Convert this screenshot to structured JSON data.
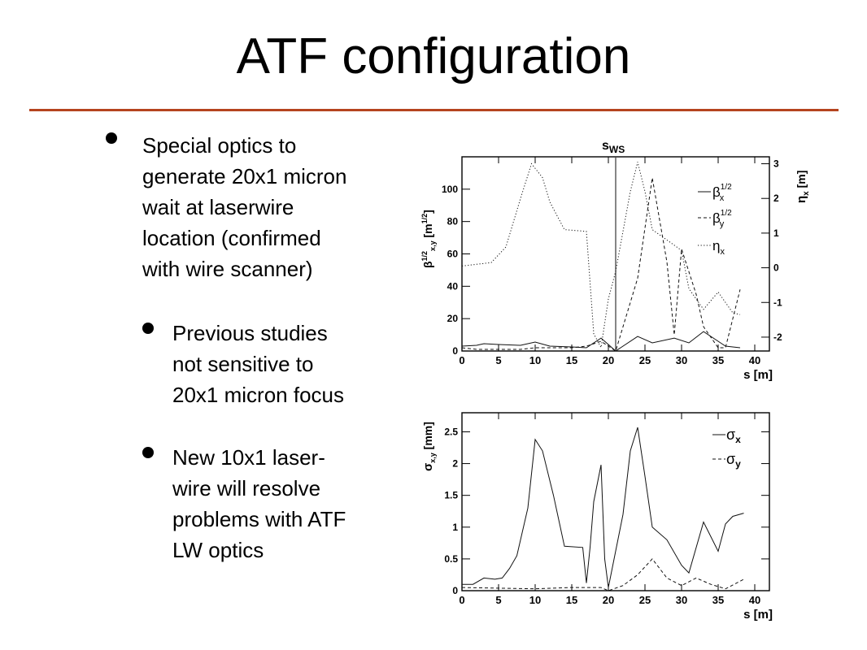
{
  "slide": {
    "title": "ATF configuration",
    "accent_color": "#b5441f",
    "bullets": [
      {
        "level": 1,
        "text": "Special optics to\ngenerate 20x1 micron\nwait at laserwire\nlocation (confirmed\nwith wire scanner)"
      },
      {
        "level": 2,
        "text": "Previous studies\nnot sensitive to\n20x1 micron focus"
      },
      {
        "level": 2,
        "text": "New 10x1 laser-\nwire will resolve\nproblems with ATF\nLW optics"
      }
    ]
  },
  "chart_data": [
    {
      "type": "line",
      "title": "s_WS",
      "title_main": "s",
      "title_sub": "WS",
      "xlabel": "s [m]",
      "ylabel": "β^{1/2}_{x,y} [m^{1/2}]",
      "ylabel_right": "η_x [m]",
      "xlim": [
        0,
        42
      ],
      "ylim": [
        0,
        120
      ],
      "ylim_right": [
        -2.4,
        3.2
      ],
      "xticks": [
        "0",
        "5",
        "10",
        "15",
        "20",
        "25",
        "30",
        "35",
        "40"
      ],
      "yticks": [
        "0",
        "20",
        "40",
        "60",
        "80",
        "100"
      ],
      "yticks_right": [
        "-2",
        "-1",
        "0",
        "1",
        "2",
        "3"
      ],
      "vline_x": 21,
      "legend_position": "right",
      "series": [
        {
          "name": "β_x^{1/2}",
          "axis": "left",
          "style": "solid",
          "points": [
            [
              0,
              3
            ],
            [
              2,
              3.5
            ],
            [
              3,
              4.5
            ],
            [
              5,
              4
            ],
            [
              8,
              3.5
            ],
            [
              10,
              5.5
            ],
            [
              12,
              3
            ],
            [
              15,
              2.5
            ],
            [
              17,
              2
            ],
            [
              19,
              8
            ],
            [
              20,
              4
            ],
            [
              21,
              0
            ],
            [
              24,
              9
            ],
            [
              26,
              5
            ],
            [
              29,
              8
            ],
            [
              31,
              5
            ],
            [
              33,
              12
            ],
            [
              36,
              3
            ],
            [
              38,
              2
            ]
          ]
        },
        {
          "name": "β_y^{1/2}",
          "axis": "left",
          "style": "dashed",
          "points": [
            [
              0,
              2
            ],
            [
              2,
              1
            ],
            [
              5,
              1
            ],
            [
              8,
              1
            ],
            [
              10,
              2
            ],
            [
              13,
              2
            ],
            [
              15,
              2
            ],
            [
              17,
              3
            ],
            [
              19,
              6
            ],
            [
              20,
              3
            ],
            [
              21,
              0
            ],
            [
              24,
              45
            ],
            [
              26,
              107
            ],
            [
              28,
              55
            ],
            [
              29,
              10
            ],
            [
              30,
              63
            ],
            [
              32,
              35
            ],
            [
              33,
              15
            ],
            [
              35,
              2
            ],
            [
              36,
              2
            ],
            [
              38,
              38
            ]
          ]
        },
        {
          "name": "η_x",
          "axis": "right",
          "style": "dotted",
          "points": [
            [
              0,
              0.05
            ],
            [
              2,
              0.1
            ],
            [
              4,
              0.15
            ],
            [
              6,
              0.6
            ],
            [
              8,
              2.0
            ],
            [
              9.5,
              3.0
            ],
            [
              11,
              2.6
            ],
            [
              12,
              1.9
            ],
            [
              13,
              1.5
            ],
            [
              14,
              1.1
            ],
            [
              17,
              1.05
            ],
            [
              18,
              -1.9
            ],
            [
              19,
              -2.3
            ],
            [
              20,
              -0.9
            ],
            [
              21,
              -0.1
            ],
            [
              23,
              2.2
            ],
            [
              24,
              3.05
            ],
            [
              25,
              2.2
            ],
            [
              26,
              1.1
            ],
            [
              27,
              0.95
            ],
            [
              30,
              0.5
            ],
            [
              31,
              -0.6
            ],
            [
              33,
              -1.2
            ],
            [
              35,
              -0.7
            ],
            [
              37,
              -1.3
            ],
            [
              38,
              -1.35
            ]
          ]
        }
      ]
    },
    {
      "type": "line",
      "title": "",
      "xlabel": "s [m]",
      "ylabel": "σ_{x,y} [mm]",
      "xlim": [
        0,
        42
      ],
      "ylim": [
        0,
        2.8
      ],
      "xticks": [
        "0",
        "5",
        "10",
        "15",
        "20",
        "25",
        "30",
        "35",
        "40"
      ],
      "yticks": [
        "0",
        "0.5",
        "1",
        "1.5",
        "2",
        "2.5"
      ],
      "legend_position": "top-right",
      "series": [
        {
          "name": "σ_x",
          "style": "solid",
          "points": [
            [
              0,
              0.1
            ],
            [
              1.5,
              0.1
            ],
            [
              3,
              0.2
            ],
            [
              4.5,
              0.18
            ],
            [
              5.5,
              0.2
            ],
            [
              6.5,
              0.35
            ],
            [
              7.5,
              0.55
            ],
            [
              9,
              1.3
            ],
            [
              10,
              2.38
            ],
            [
              11,
              2.2
            ],
            [
              12.5,
              1.5
            ],
            [
              14,
              0.7
            ],
            [
              16.5,
              0.68
            ],
            [
              17,
              0.12
            ],
            [
              17.5,
              0.68
            ],
            [
              18,
              1.4
            ],
            [
              19,
              1.98
            ],
            [
              19.5,
              0.5
            ],
            [
              20,
              0.05
            ],
            [
              22,
              1.2
            ],
            [
              23,
              2.2
            ],
            [
              24,
              2.57
            ],
            [
              25,
              1.8
            ],
            [
              26,
              1.0
            ],
            [
              28,
              0.8
            ],
            [
              30,
              0.4
            ],
            [
              31,
              0.28
            ],
            [
              33,
              1.08
            ],
            [
              35,
              0.62
            ],
            [
              36,
              1.05
            ],
            [
              37,
              1.17
            ],
            [
              38.5,
              1.22
            ]
          ]
        },
        {
          "name": "σ_y",
          "style": "dashed",
          "points": [
            [
              0,
              0.05
            ],
            [
              5,
              0.04
            ],
            [
              10,
              0.03
            ],
            [
              15,
              0.05
            ],
            [
              19,
              0.05
            ],
            [
              20,
              0.0
            ],
            [
              22,
              0.08
            ],
            [
              24,
              0.25
            ],
            [
              26,
              0.5
            ],
            [
              27,
              0.35
            ],
            [
              28,
              0.2
            ],
            [
              30,
              0.08
            ],
            [
              32,
              0.2
            ],
            [
              34,
              0.1
            ],
            [
              36,
              0.03
            ],
            [
              38.5,
              0.18
            ]
          ]
        }
      ]
    }
  ]
}
